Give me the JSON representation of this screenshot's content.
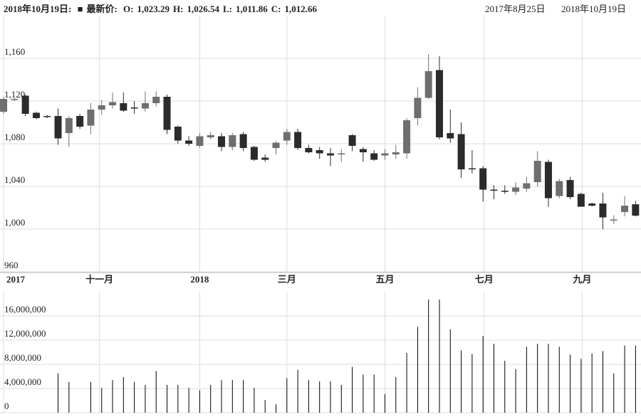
{
  "header": {
    "date": "2018年10月19日:",
    "marker": "■",
    "label": "最新价:",
    "items": [
      {
        "key": "O:",
        "value": "1,023.29"
      },
      {
        "key": "H:",
        "value": "1,026.54"
      },
      {
        "key": "L:",
        "value": "1,011.86"
      },
      {
        "key": "C:",
        "value": "1,012.66"
      }
    ],
    "range": [
      "2017年8月25日",
      "2018年10月19日"
    ]
  },
  "chart_data": [
    {
      "type": "candlestick",
      "up_color": "#6e6e6e",
      "down_color": "#2b2b2b",
      "open": [
        1110,
        1121,
        1125,
        1109,
        1106,
        1106,
        1090,
        1106,
        1097,
        1112,
        1116,
        1118,
        1114,
        1113,
        1118,
        1124,
        1096,
        1083,
        1078,
        1086,
        1087,
        1077,
        1089,
        1077,
        1067,
        1076,
        1083,
        1091,
        1076,
        1074,
        1071,
        1070,
        1088,
        1075,
        1071,
        1069,
        1070,
        1071,
        1104,
        1123,
        1149,
        1090,
        1089,
        1057,
        1057,
        1037,
        1036,
        1035,
        1038,
        1044,
        1063,
        1031,
        1046,
        1033,
        1024,
        1024,
        1009,
        1016,
        1023.29
      ],
      "high": [
        1124,
        1123,
        1126,
        1110,
        1107,
        1113,
        1106,
        1108,
        1118,
        1121,
        1128,
        1128,
        1120,
        1129,
        1129,
        1126,
        1097,
        1087,
        1090,
        1091,
        1090,
        1090,
        1091,
        1078,
        1070,
        1082,
        1094,
        1094,
        1079,
        1077,
        1076,
        1075,
        1089,
        1077,
        1074,
        1075,
        1079,
        1104,
        1133,
        1164,
        1162,
        1112,
        1100,
        1074,
        1059,
        1041,
        1041,
        1044,
        1049,
        1073,
        1065,
        1047,
        1049,
        1034,
        1025,
        1034,
        1013,
        1031,
        1026.54
      ],
      "low": [
        1108,
        1120,
        1106,
        1103,
        1104,
        1079,
        1077,
        1094,
        1089,
        1107,
        1113,
        1110,
        1108,
        1110,
        1115,
        1089,
        1080,
        1078,
        1076,
        1084,
        1073,
        1074,
        1073,
        1064,
        1063,
        1070,
        1079,
        1074,
        1071,
        1066,
        1059,
        1063,
        1073,
        1063,
        1064,
        1065,
        1066,
        1066,
        1097,
        1122,
        1084,
        1081,
        1048,
        1052,
        1026,
        1028,
        1033,
        1032,
        1035,
        1040,
        1021,
        1029,
        1028,
        1021,
        1021,
        1000,
        1005,
        1012,
        1011.86
      ],
      "close": [
        1122,
        1122,
        1108,
        1104,
        1105,
        1085,
        1104,
        1096,
        1112,
        1116,
        1119,
        1111,
        1113,
        1118,
        1124,
        1093,
        1083,
        1080,
        1087,
        1088,
        1077,
        1088,
        1076,
        1065,
        1065,
        1081,
        1091,
        1076,
        1072,
        1071,
        1069,
        1071,
        1078,
        1072,
        1065,
        1071,
        1072,
        1102,
        1123,
        1148,
        1086,
        1085,
        1056,
        1056,
        1037,
        1036,
        1035,
        1039,
        1043,
        1064,
        1029,
        1045,
        1030,
        1021,
        1022,
        1011,
        1009,
        1022,
        1012.66
      ],
      "xlim": [
        -0.33,
        58.5
      ],
      "xticks": [
        {
          "value": 0,
          "label": "2017"
        },
        {
          "value": 8.8,
          "label": "十一月"
        },
        {
          "value": 18,
          "label": "2018"
        },
        {
          "value": 26,
          "label": "三月"
        },
        {
          "value": 35,
          "label": "五月"
        },
        {
          "value": 44.1,
          "label": "七月"
        },
        {
          "value": 53.1,
          "label": "九月"
        }
      ],
      "ylim": [
        960,
        1200
      ],
      "yticks": [
        960,
        {
          "value": 1000,
          "label": "1,000"
        },
        {
          "value": 1040,
          "label": "1,040"
        },
        {
          "value": 1080,
          "label": "1,080"
        },
        {
          "value": 1120,
          "label": "1,120"
        },
        {
          "value": 1160,
          "label": "1,160"
        }
      ],
      "grid": true
    },
    {
      "type": "volume",
      "color": "#000000",
      "values": [
        null,
        null,
        null,
        null,
        null,
        6500000,
        5100000,
        null,
        5100000,
        4100000,
        5400000,
        5900000,
        5100000,
        4600000,
        6900000,
        4600000,
        4600000,
        4100000,
        3700000,
        4600000,
        5400000,
        5400000,
        5400000,
        4100000,
        2100000,
        1400000,
        5700000,
        7100000,
        5400000,
        5200000,
        5200000,
        4600000,
        7600000,
        6300000,
        6300000,
        3100000,
        5900000,
        9900000,
        14200000,
        18700000,
        18700000,
        13800000,
        10300000,
        9700000,
        12700000,
        11400000,
        8600000,
        7200000,
        10900000,
        11400000,
        11400000,
        10900000,
        9600000,
        8900000,
        9800000,
        10200000,
        6500000,
        11100000,
        11100000
      ],
      "ylim": [
        0,
        20000000
      ],
      "yticks": [
        0,
        {
          "value": 4000000,
          "label": "4,000,000"
        },
        {
          "value": 8000000,
          "label": "8,000,000"
        },
        {
          "value": 12000000,
          "label": "12,000,000"
        },
        {
          "value": 16000000,
          "label": "16,000,000"
        }
      ],
      "grid": true
    }
  ]
}
